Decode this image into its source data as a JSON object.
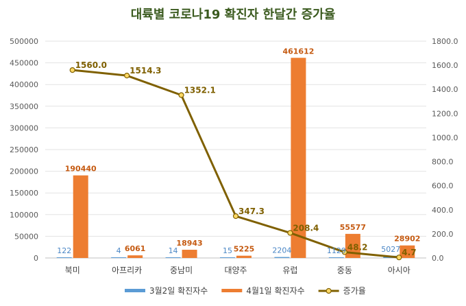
{
  "chart_data": {
    "type": "bar",
    "title": "대륙별 코로나19 확진자 한달간 증가율",
    "categories": [
      "북미",
      "아프리카",
      "중남미",
      "대양주",
      "유럽",
      "중동",
      "아시아"
    ],
    "series": [
      {
        "name": "3월2일 확진자수",
        "type": "bar",
        "axis": "left",
        "color": "#5b9bd5",
        "values": [
          122,
          4,
          14,
          15,
          2204,
          1129,
          5027
        ],
        "labels": [
          "122",
          "4",
          "14",
          "15",
          "2204",
          "1129",
          "5027"
        ],
        "label_color": "#4a86c5"
      },
      {
        "name": "4월1일 확진자수",
        "type": "bar",
        "axis": "left",
        "color": "#ed7d31",
        "values": [
          190440,
          6061,
          18943,
          5225,
          461612,
          55577,
          28902
        ],
        "labels": [
          "190440",
          "6061",
          "18943",
          "5225",
          "461612",
          "55577",
          "28902"
        ],
        "label_color": "#c55a11"
      },
      {
        "name": "증가율",
        "type": "line",
        "axis": "right",
        "color": "#7f6000",
        "marker_fill": "#ffd966",
        "values": [
          1560.0,
          1514.3,
          1352.1,
          347.3,
          208.4,
          48.2,
          4.7
        ],
        "labels": [
          "1560.0",
          "1514.3",
          "1352.1",
          "347.3",
          "208.4",
          "48.2",
          "4.7"
        ],
        "label_color": "#7f6000"
      }
    ],
    "y_left": {
      "min": 0,
      "max": 500000,
      "ticks": [
        "0",
        "50000",
        "100000",
        "150000",
        "200000",
        "250000",
        "300000",
        "350000",
        "400000",
        "450000",
        "500000"
      ]
    },
    "y_right": {
      "min": 0,
      "max": 1800,
      "ticks": [
        "0.0",
        "200.0",
        "400.0",
        "600.0",
        "800.0",
        "1000.0",
        "1200.0",
        "1400.0",
        "1600.0",
        "1800.0"
      ]
    },
    "grid": true,
    "legend_position": "bottom",
    "title_color": "#3a5a1e"
  }
}
